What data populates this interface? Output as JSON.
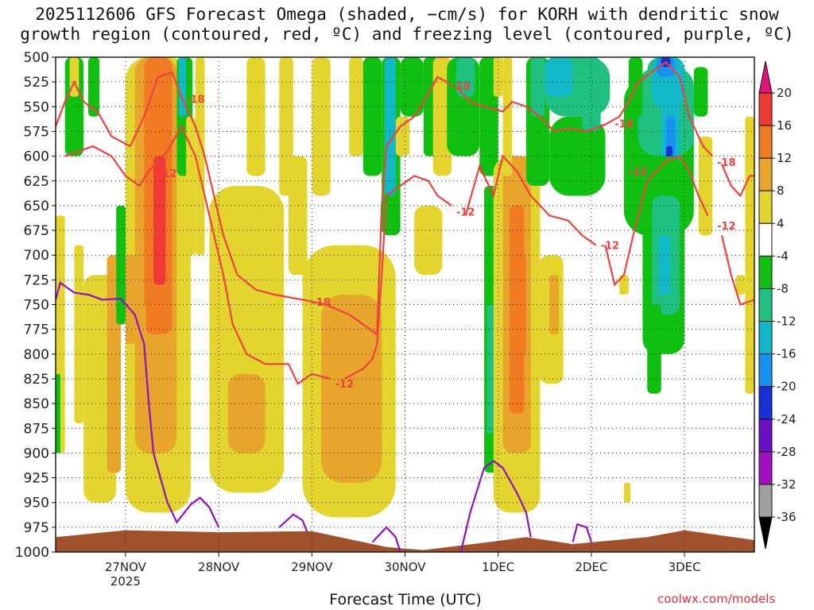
{
  "title_line1": "2025112606 GFS Forecast Omega (shaded, −cm/s) for KORH with dendritic snow",
  "title_line2": "growth region (contoured, red, ºC) and freezing level (contoured, purple, ºC)",
  "credit": "coolwx.com/models",
  "chart_data": {
    "type": "heatmap",
    "title": "2025112606 GFS Forecast Omega (shaded, −cm/s) for KORH with dendritic snow growth region (contoured, red, ºC) and freezing level (contoured, purple, ºC)",
    "xlabel": "Forecast Time (UTC)",
    "ylabel": "",
    "x_ticks": [
      "27NOV",
      "28NOV",
      "29NOV",
      "30NOV",
      "1DEC",
      "2DEC",
      "3DEC"
    ],
    "x_tick_sublabel": "2025",
    "x_range_days": [
      26.25,
      33.75
    ],
    "y_ticks": [
      500,
      525,
      550,
      575,
      600,
      625,
      650,
      675,
      700,
      725,
      750,
      775,
      800,
      825,
      850,
      875,
      900,
      925,
      950,
      975,
      1000
    ],
    "y_range_hpa": [
      500,
      1000
    ],
    "y_axis_inverted": true,
    "grid": "dotted",
    "colorbar": {
      "ticks": [
        20,
        16,
        12,
        8,
        4,
        -4,
        -8,
        -12,
        -16,
        -20,
        -24,
        -28,
        -32,
        -36
      ],
      "colors": [
        "#e0157a",
        "#f03a35",
        "#f07b22",
        "#e8a52c",
        "#e3d52d",
        "#ffffff",
        "#10c010",
        "#20c080",
        "#10b8c8",
        "#1a90f0",
        "#1830d8",
        "#6a10c8",
        "#a010c0",
        "#a0a0a0",
        "#000000"
      ]
    },
    "dgz_contour_labels": [
      "-18",
      "-12"
    ],
    "dgz_labels_read": [
      {
        "t": "27.35",
        "p": 617,
        "label": "-12"
      },
      {
        "t": "27.65",
        "p": 542,
        "label": "-18"
      },
      {
        "t": "29.0",
        "p": 747,
        "label": "-18"
      },
      {
        "t": "29.25",
        "p": 830,
        "label": "-12"
      },
      {
        "t": "30.5",
        "p": 529,
        "label": "-18"
      },
      {
        "t": "30.55",
        "p": 656,
        "label": "-12"
      },
      {
        "t": "32.1",
        "p": 690,
        "label": "-12"
      },
      {
        "t": "32.25",
        "p": 567,
        "label": "-18"
      },
      {
        "t": "32.4",
        "p": 615,
        "label": "-12"
      },
      {
        "t": "33.35",
        "p": 606,
        "label": "-18"
      },
      {
        "t": "33.35",
        "p": 670,
        "label": "-12"
      }
    ],
    "freezing_level_hpa": [
      {
        "t": 26.25,
        "p": 745
      },
      {
        "t": 26.3,
        "p": 728
      },
      {
        "t": 26.45,
        "p": 738
      },
      {
        "t": 26.6,
        "p": 740
      },
      {
        "t": 26.75,
        "p": 745
      },
      {
        "t": 26.95,
        "p": 744
      },
      {
        "t": 27.1,
        "p": 760
      },
      {
        "t": 27.2,
        "p": 790
      },
      {
        "t": 27.25,
        "p": 850
      },
      {
        "t": 27.3,
        "p": 900
      },
      {
        "t": 27.45,
        "p": 950
      },
      {
        "t": 27.55,
        "p": 970
      },
      {
        "t": 27.7,
        "p": 952
      },
      {
        "t": 27.8,
        "p": 945
      },
      {
        "t": 27.9,
        "p": 955
      },
      {
        "t": 28.0,
        "p": 975
      }
    ],
    "omega_regions_read": [
      {
        "t_start": 27.2,
        "t_end": 27.55,
        "p_top": 500,
        "p_bottom": 900,
        "omega_max": 16
      },
      {
        "t_start": 28.85,
        "t_end": 29.85,
        "p_top": 700,
        "p_bottom": 960,
        "omega_max": 8
      },
      {
        "t_start": 29.6,
        "t_end": 30.1,
        "p_top": 500,
        "p_bottom": 650,
        "omega_min": -12
      },
      {
        "t_start": 30.5,
        "t_end": 31.05,
        "p_top": 500,
        "p_bottom": 620,
        "omega_min": -8
      },
      {
        "t_start": 31.05,
        "t_end": 31.3,
        "p_top": 500,
        "p_bottom": 920,
        "omega_max": 12
      },
      {
        "t_start": 31.3,
        "t_end": 32.15,
        "p_top": 500,
        "p_bottom": 640,
        "omega_min": -16
      },
      {
        "t_start": 32.45,
        "t_end": 33.15,
        "p_top": 500,
        "p_bottom": 840,
        "omega_min": -28
      }
    ],
    "terrain_hpa": [
      {
        "t": 26.25,
        "p": 985
      },
      {
        "t": 27.0,
        "p": 978
      },
      {
        "t": 28.0,
        "p": 980
      },
      {
        "t": 29.0,
        "p": 979
      },
      {
        "t": 29.8,
        "p": 995
      },
      {
        "t": 30.2,
        "p": 998
      },
      {
        "t": 30.9,
        "p": 990
      },
      {
        "t": 31.3,
        "p": 985
      },
      {
        "t": 31.8,
        "p": 992
      },
      {
        "t": 32.6,
        "p": 985
      },
      {
        "t": 33.0,
        "p": 978
      },
      {
        "t": 33.75,
        "p": 988
      }
    ]
  }
}
